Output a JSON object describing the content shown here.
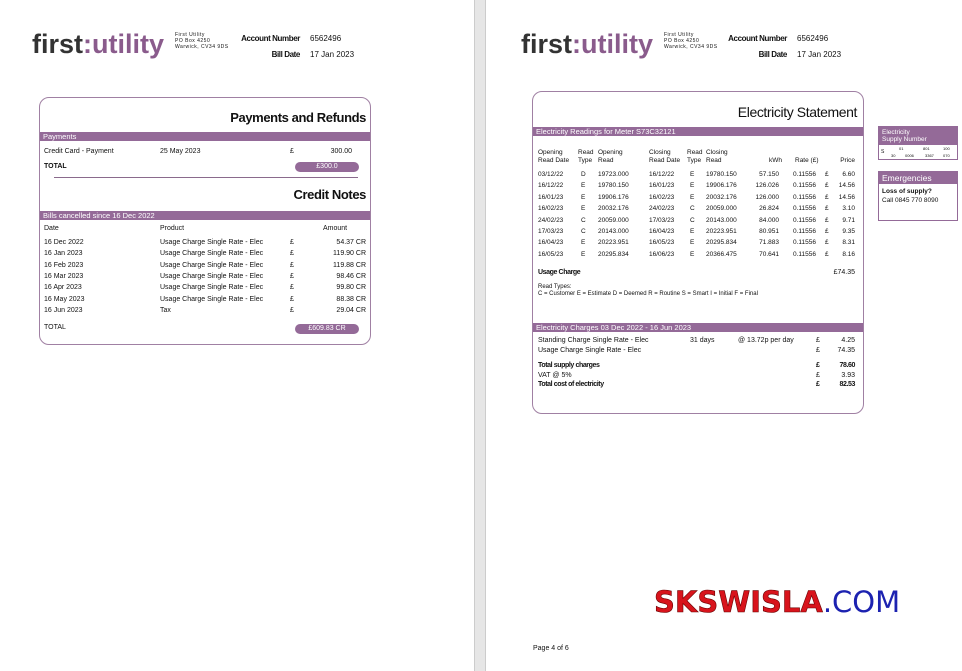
{
  "header": {
    "logo_first": "first",
    "logo_colon": ":",
    "logo_utility": "utility",
    "address": [
      "First Utility",
      "PO Box 4250",
      "Warwick, CV34 9DS"
    ],
    "account_number_label": "Account Number",
    "account_number": "6562496",
    "bill_date_label": "Bill Date",
    "bill_date": "17 Jan 2023"
  },
  "payments": {
    "title": "Payments and Refunds",
    "section": "Payments",
    "row": {
      "desc": "Credit Card - Payment",
      "date": "25 May 2023",
      "currency": "£",
      "amount": "300.00"
    },
    "total_label": "TOTAL",
    "total": "£300.0"
  },
  "credit_notes": {
    "title": "Credit Notes",
    "section": "Bills cancelled since 16 Dec 2022",
    "headers": [
      "Date",
      "Product",
      "Amount"
    ],
    "rows": [
      [
        "16 Dec 2022",
        "Usage Charge Single Rate - Elec",
        "£",
        "54.37 CR"
      ],
      [
        "16 Jan  2023",
        "Usage Charge Single Rate - Elec",
        "£",
        "119.90 CR"
      ],
      [
        "16 Feb 2023",
        "Usage Charge Single Rate - Elec",
        "£",
        "119.88 CR"
      ],
      [
        "16 Mar 2023",
        "Usage Charge Single Rate - Elec",
        "£",
        "98.46 CR"
      ],
      [
        "16 Apr  2023",
        "Usage Charge Single Rate - Elec",
        "£",
        "99.80 CR"
      ],
      [
        "16 May 2023",
        "Usage Charge Single Rate - Elec",
        "£",
        "88.38 CR"
      ],
      [
        "16 Jun  2023",
        "Tax",
        "£",
        "29.04 CR"
      ]
    ],
    "total_label": "TOTAL",
    "total": "£609.83 CR"
  },
  "statement": {
    "title": "Electricity Statement",
    "readings_section": "Electricity Readings for Meter S73C32121",
    "headers": [
      [
        "Opening",
        "Read Date"
      ],
      [
        "Read",
        "Type"
      ],
      [
        "Opening",
        "Read"
      ],
      [
        "Closing",
        "Read Date"
      ],
      [
        "Read",
        "Type"
      ],
      [
        "Closing",
        "Read"
      ],
      [
        "",
        "kWh"
      ],
      [
        "",
        "Rate (£)"
      ],
      [
        "",
        "Price"
      ]
    ],
    "rows": [
      [
        "03/12/22",
        "D",
        "19723.000",
        "16/12/22",
        "E",
        "19780.150",
        "57.150",
        "0.11556",
        "£",
        "6.60"
      ],
      [
        "16/12/22",
        "E",
        "19780.150",
        "16/01/23",
        "E",
        "19906.176",
        "126.026",
        "0.11556",
        "£",
        "14.56"
      ],
      [
        "16/01/23",
        "E",
        "19906.176",
        "16/02/23",
        "E",
        "20032.176",
        "126.000",
        "0.11556",
        "£",
        "14.56"
      ],
      [
        "16/02/23",
        "E",
        "20032.176",
        "24/02/23",
        "C",
        "20059.000",
        "26.824",
        "0.11556",
        "£",
        "3.10"
      ],
      [
        "24/02/23",
        "C",
        "20059.000",
        "17/03/23",
        "C",
        "20143.000",
        "84.000",
        "0.11556",
        "£",
        "9.71"
      ],
      [
        "17/03/23",
        "C",
        "20143.000",
        "16/04/23",
        "E",
        "20223.951",
        "80.951",
        "0.11556",
        "£",
        "9.35"
      ],
      [
        "16/04/23",
        "E",
        "20223.951",
        "16/05/23",
        "E",
        "20295.834",
        "71.883",
        "0.11556",
        "£",
        "8.31"
      ],
      [
        "16/05/23",
        "E",
        "20295.834",
        "16/06/23",
        "E",
        "20366.475",
        "70.641",
        "0.11556",
        "£",
        "8.16"
      ]
    ],
    "usage_label": "Usage Charge",
    "usage_total": "£74.35",
    "read_types_label": "Read Types:",
    "read_types": "C = Customer   E = Estimate   D = Deemed   R = Routine   S = Smart   I = Initial   F = Final",
    "charges_section": "Electricity Charges 03 Dec 2022 - 16 Jun 2023",
    "charges": [
      {
        "label": "Standing Charge Single Rate - Elec",
        "days": "31 days",
        "rate": "@ 13.72p per day",
        "currency": "£",
        "amount": "4.25",
        "bold": false
      },
      {
        "label": "Usage Charge Single Rate - Elec",
        "days": "",
        "rate": "",
        "currency": "£",
        "amount": "74.35",
        "bold": false
      },
      {
        "label": "Total supply charges",
        "days": "",
        "rate": "",
        "currency": "£",
        "amount": "78.60",
        "bold": true
      },
      {
        "label": "VAT @ 5%",
        "days": "",
        "rate": "",
        "currency": "£",
        "amount": "3.93",
        "bold": false
      },
      {
        "label": "Total cost of electricity",
        "days": "",
        "rate": "",
        "currency": "£",
        "amount": "82.53",
        "bold": true
      }
    ]
  },
  "supply": {
    "title1": "Electricity",
    "title2": "Supply Number",
    "s": "S",
    "row1": [
      "01",
      "801",
      "100"
    ],
    "row2": [
      "30",
      "0006",
      "3367",
      "070"
    ]
  },
  "emergencies": {
    "title": "Emergencies",
    "line1": "Loss of supply?",
    "line2": "Call 0845 770 8090"
  },
  "watermark": {
    "red": "SKSWISLA",
    "blue": ".COM"
  },
  "footer": {
    "page": "Page 4 of 6"
  },
  "colors": {
    "accent": "#946a98"
  }
}
